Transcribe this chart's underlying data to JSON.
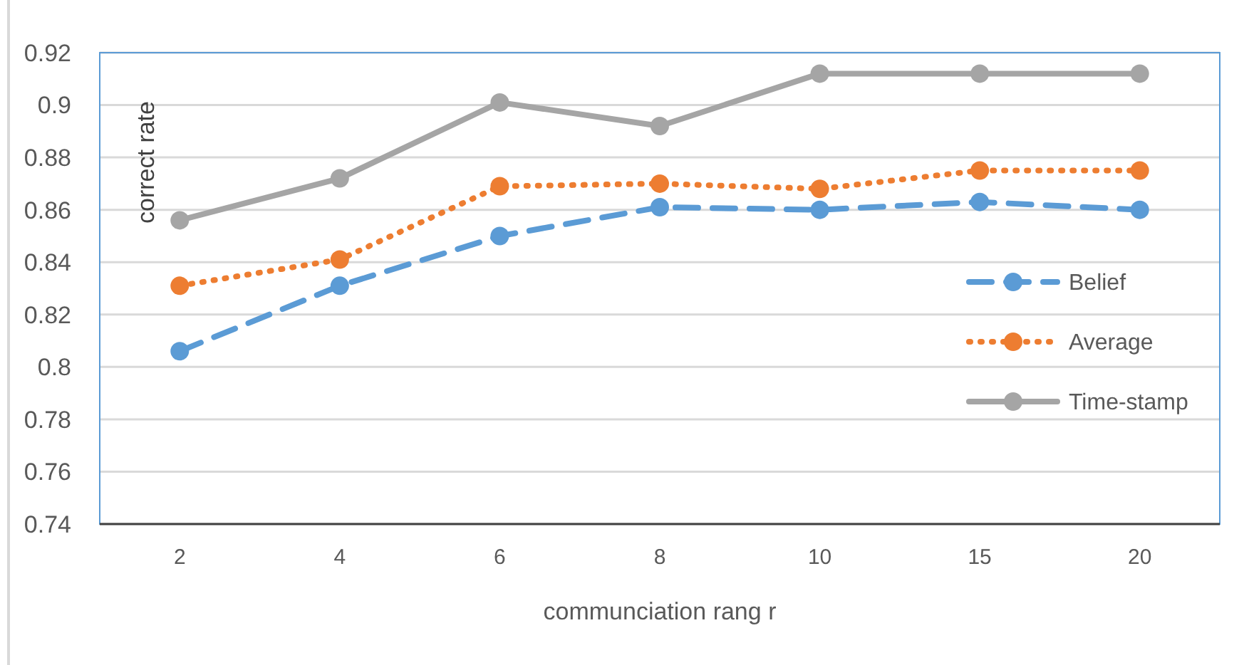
{
  "chart_data": {
    "type": "line",
    "xlabel": "communciation rang  r",
    "ylabel": "correct  rate",
    "categories": [
      "2",
      "4",
      "6",
      "8",
      "10",
      "15",
      "20"
    ],
    "series": [
      {
        "name": "Belief",
        "color": "#5b9bd5",
        "line_style": "dashed",
        "values": [
          0.806,
          0.831,
          0.85,
          0.861,
          0.86,
          0.863,
          0.86
        ]
      },
      {
        "name": "Average",
        "color": "#ed7d31",
        "line_style": "dotted",
        "values": [
          0.831,
          0.841,
          0.869,
          0.87,
          0.868,
          0.875,
          0.875
        ]
      },
      {
        "name": "Time-stamp",
        "color": "#a5a5a5",
        "line_style": "solid",
        "values": [
          0.856,
          0.872,
          0.901,
          0.892,
          0.912,
          0.912,
          0.912
        ]
      }
    ],
    "ylim": [
      0.74,
      0.92
    ],
    "yticks": [
      0.74,
      0.76,
      0.78,
      0.8,
      0.82,
      0.84,
      0.86,
      0.88,
      0.9,
      0.92
    ],
    "grid": "y",
    "legend": "right",
    "marker": "circle"
  }
}
